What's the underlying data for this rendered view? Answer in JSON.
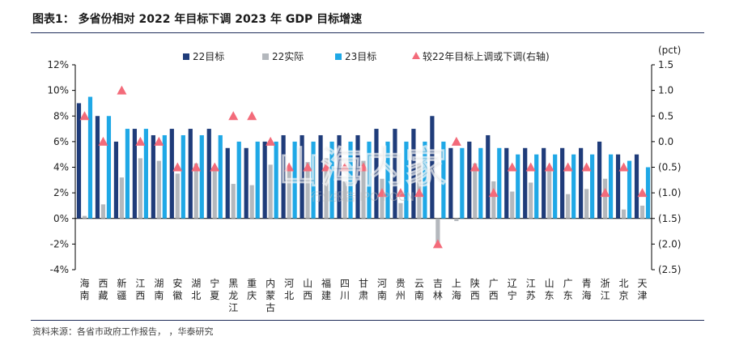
{
  "title": "图表1：  多省份相对 2022 年目标下调 2023 年 GDP 目标增速",
  "source": "资料来源：各省市政府工作报告，      ，华泰研究",
  "watermark": {
    "main": "山海内家",
    "sub": "行业报告 IPO POCN"
  },
  "colors": {
    "navy": "#1f3c7a",
    "gray": "#b4b8bd",
    "cyan": "#1fa8e6",
    "triangle": "#f36b7a"
  },
  "chart_data": {
    "type": "bar",
    "categories": [
      "海南",
      "西藏",
      "新疆",
      "江西",
      "湖南",
      "安徽",
      "湖北",
      "宁夏",
      "黑龙江",
      "重庆",
      "内蒙古",
      "河北",
      "山西",
      "福建",
      "四川",
      "甘肃",
      "河南",
      "贵州",
      "云南",
      "吉林",
      "上海",
      "陕西",
      "广西",
      "辽宁",
      "江苏",
      "山东",
      "广东",
      "青海",
      "浙江",
      "北京",
      "天津"
    ],
    "category_labels": [
      [
        "海",
        "南"
      ],
      [
        "西",
        "藏"
      ],
      [
        "新",
        "疆"
      ],
      [
        "江",
        "西"
      ],
      [
        "湖",
        "南"
      ],
      [
        "安",
        "徽"
      ],
      [
        "湖",
        "北"
      ],
      [
        "宁",
        "夏"
      ],
      [
        "黑",
        "龙",
        "江"
      ],
      [
        "重",
        "庆"
      ],
      [
        "内",
        "蒙",
        "古"
      ],
      [
        "河",
        "北"
      ],
      [
        "山",
        "西"
      ],
      [
        "福",
        "建"
      ],
      [
        "四",
        "川"
      ],
      [
        "甘",
        "肃"
      ],
      [
        "河",
        "南"
      ],
      [
        "贵",
        "州"
      ],
      [
        "云",
        "南"
      ],
      [
        "吉",
        "林"
      ],
      [
        "上",
        "海"
      ],
      [
        "陕",
        "西"
      ],
      [
        "广",
        "西"
      ],
      [
        "辽",
        "宁"
      ],
      [
        "江",
        "苏"
      ],
      [
        "山",
        "东"
      ],
      [
        "广",
        "东"
      ],
      [
        "青",
        "海"
      ],
      [
        "浙",
        "江"
      ],
      [
        "北",
        "京"
      ],
      [
        "天",
        "津"
      ]
    ],
    "series": [
      {
        "name": "22目标",
        "axis": "left",
        "type": "bar",
        "values": [
          9,
          8,
          6,
          7,
          6.5,
          7,
          7,
          7,
          5.5,
          5.5,
          6,
          6.5,
          6.5,
          6.5,
          6.5,
          6.5,
          7,
          7,
          7,
          8,
          5.5,
          6,
          6.5,
          5.5,
          5.5,
          5.5,
          5.5,
          5.5,
          6,
          5,
          5
        ]
      },
      {
        "name": "22实际",
        "axis": "left",
        "type": "bar",
        "values": [
          0.2,
          1.1,
          3.2,
          4.7,
          4.5,
          3.5,
          4.3,
          4,
          2.7,
          2.6,
          4.2,
          3.8,
          4.4,
          4.7,
          2.9,
          4.5,
          3.1,
          1.2,
          4.3,
          -1.9,
          -0.2,
          4.3,
          2.9,
          2.1,
          2.8,
          3.9,
          1.9,
          2.3,
          3.1,
          0.7,
          1
        ]
      },
      {
        "name": "23目标",
        "axis": "right_bars_left_scale",
        "type": "bar",
        "values": [
          9.5,
          8,
          7,
          7,
          6.5,
          6.5,
          6.5,
          6.5,
          6,
          6,
          6,
          6,
          6,
          6,
          6,
          6,
          6,
          6,
          6,
          6,
          5.5,
          5.5,
          5.5,
          5,
          5,
          5,
          5,
          5,
          5,
          4.5,
          4
        ]
      },
      {
        "name": "较22年目标上调或下调(右轴)",
        "axis": "right",
        "type": "marker",
        "values": [
          0.5,
          0,
          1,
          0,
          0,
          -0.5,
          -0.5,
          -0.5,
          0.5,
          0.5,
          0,
          -0.5,
          -0.5,
          -0.5,
          -0.5,
          -0.5,
          -1,
          -1,
          -1,
          -2,
          0,
          -0.5,
          -1,
          -0.5,
          -0.5,
          -0.5,
          -0.5,
          -0.5,
          -1,
          -0.5,
          -1
        ]
      }
    ],
    "y_left": {
      "min": -4,
      "max": 12,
      "ticks": [
        -4,
        -2,
        0,
        2,
        4,
        6,
        8,
        10,
        12
      ],
      "tick_labels": [
        "-4%",
        "-2%",
        "0%",
        "2%",
        "4%",
        "6%",
        "8%",
        "10%",
        "12%"
      ]
    },
    "y_right": {
      "unit": "(pct)",
      "min": -2.5,
      "max": 1.5,
      "ticks": [
        1.5,
        1,
        0.5,
        0,
        -0.5,
        -1,
        -1.5,
        -2,
        -2.5
      ],
      "tick_labels": [
        "1.5",
        "1.0",
        "0.5",
        "0.0",
        "(0.5)",
        "(1.0)",
        "(1.5)",
        "(2.0)",
        "(2.5)"
      ]
    },
    "legend": {
      "position": "top",
      "items": [
        "22目标",
        "22实际",
        "23目标",
        "较22年目标上调或下调(右轴)"
      ]
    },
    "grid": false
  }
}
